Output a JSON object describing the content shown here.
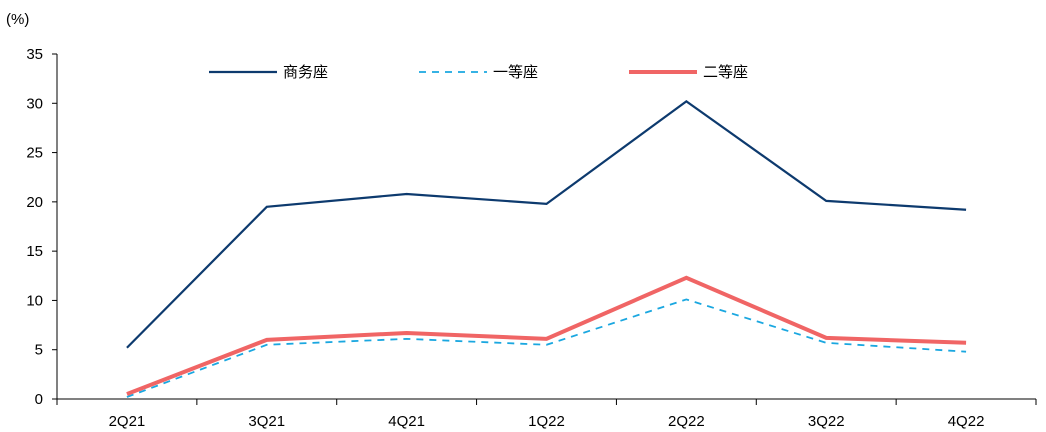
{
  "chart_data": {
    "type": "line",
    "unit_label": "(%)",
    "categories": [
      "2Q21",
      "3Q21",
      "4Q21",
      "1Q22",
      "2Q22",
      "3Q22",
      "4Q22"
    ],
    "ylim": [
      0,
      35
    ],
    "yticks": [
      0,
      5,
      10,
      15,
      20,
      25,
      30,
      35
    ],
    "grid": false,
    "legend_position": "top",
    "series": [
      {
        "name": "商务座",
        "color": "#0d3a6e",
        "style": "solid",
        "values": [
          5.2,
          19.5,
          20.8,
          19.8,
          30.2,
          20.1,
          19.2
        ]
      },
      {
        "name": "一等座",
        "color": "#1aa7e0",
        "style": "dashed",
        "values": [
          0.2,
          5.5,
          6.1,
          5.5,
          10.1,
          5.7,
          4.8
        ]
      },
      {
        "name": "二等座",
        "color": "#f06565",
        "style": "solid-thick",
        "values": [
          0.5,
          6.0,
          6.7,
          6.1,
          12.3,
          6.2,
          5.7
        ]
      }
    ]
  }
}
